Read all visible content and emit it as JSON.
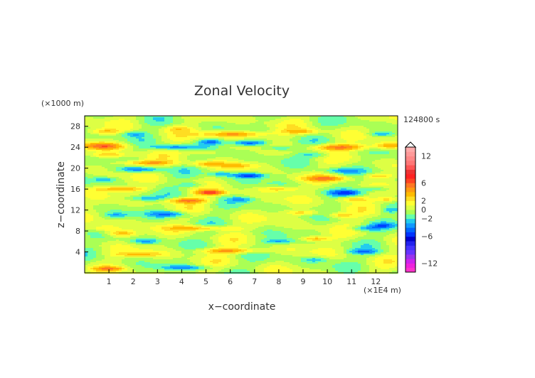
{
  "chart_data": {
    "type": "heatmap",
    "title": "Zonal Velocity",
    "xlabel": "x−coordinate",
    "ylabel": "z−coordinate",
    "x_unit": "(×1E4 m)",
    "y_unit": "(×1000 m)",
    "time_label": "124800 s",
    "xlim": [
      0,
      12.9
    ],
    "ylim": [
      0,
      30
    ],
    "x_ticks": [
      "1",
      "2",
      "3",
      "4",
      "5",
      "6",
      "7",
      "8",
      "9",
      "10",
      "11",
      "12"
    ],
    "y_ticks": [
      "4",
      "8",
      "12",
      "16",
      "20",
      "24",
      "28"
    ],
    "colorbar": {
      "levels": [
        -14,
        -13,
        -12,
        -11,
        -10,
        -9,
        -8,
        -7,
        -6,
        -5,
        -4,
        -3,
        -2,
        -1,
        0,
        1,
        2,
        3,
        4,
        5,
        6,
        7,
        8,
        9,
        10,
        11,
        12,
        13,
        14
      ],
      "colors": [
        "#ff33cc",
        "#ee22dd",
        "#cc22ee",
        "#9933ee",
        "#6633ff",
        "#4433ff",
        "#2222ee",
        "#0000cc",
        "#0033ff",
        "#0066ff",
        "#1199ff",
        "#22ccee",
        "#66ffaa",
        "#aaff55",
        "#ddff44",
        "#ffff33",
        "#ffdd22",
        "#ffbb00",
        "#ff9911",
        "#ff7722",
        "#ff4422",
        "#ff2222",
        "#ee3333",
        "#ff5555",
        "#ff7777",
        "#ff8888",
        "#ff9999",
        "#ffaaaa"
      ],
      "tick_labels": [
        "12",
        "6",
        "2",
        "0",
        "−2",
        "−6",
        "−12"
      ],
      "tick_values": [
        12,
        6,
        2,
        0,
        -2,
        -6,
        -12
      ],
      "range": [
        -14,
        14
      ]
    },
    "features": [
      {
        "x": 0.8,
        "z": 27.0,
        "sx": 0.6,
        "sz": 0.5,
        "a": 3
      },
      {
        "x": 2.0,
        "z": 26.5,
        "sx": 0.5,
        "sz": 0.5,
        "a": -2.5
      },
      {
        "x": 3.8,
        "z": 27.5,
        "sx": 0.6,
        "sz": 0.5,
        "a": 2
      },
      {
        "x": 6.2,
        "z": 26.5,
        "sx": 1.3,
        "sz": 0.6,
        "a": 5
      },
      {
        "x": 9.0,
        "z": 27.0,
        "sx": 0.8,
        "sz": 0.5,
        "a": 3
      },
      {
        "x": 12.2,
        "z": 26.5,
        "sx": 0.5,
        "sz": 0.5,
        "a": -3
      },
      {
        "x": 0.8,
        "z": 24.2,
        "sx": 0.9,
        "sz": 0.7,
        "a": 5
      },
      {
        "x": 3.6,
        "z": 24.0,
        "sx": 0.9,
        "sz": 0.5,
        "a": -4
      },
      {
        "x": 5.2,
        "z": 25.0,
        "sx": 0.5,
        "sz": 0.6,
        "a": -4
      },
      {
        "x": 6.8,
        "z": 24.8,
        "sx": 0.8,
        "sz": 0.5,
        "a": -5
      },
      {
        "x": 8.0,
        "z": 23.8,
        "sx": 0.7,
        "sz": 0.5,
        "a": -3
      },
      {
        "x": 10.5,
        "z": 24.0,
        "sx": 1.2,
        "sz": 0.6,
        "a": 5
      },
      {
        "x": 12.6,
        "z": 24.3,
        "sx": 0.6,
        "sz": 0.6,
        "a": 4
      },
      {
        "x": 1.0,
        "z": 22.5,
        "sx": 0.8,
        "sz": 0.5,
        "a": 3
      },
      {
        "x": 4.8,
        "z": 23.0,
        "sx": 0.7,
        "sz": 0.5,
        "a": 2.5
      },
      {
        "x": 9.5,
        "z": 22.5,
        "sx": 0.7,
        "sz": 0.5,
        "a": -2
      },
      {
        "x": 2.5,
        "z": 21.0,
        "sx": 1.2,
        "sz": 0.5,
        "a": 4
      },
      {
        "x": 2.3,
        "z": 19.7,
        "sx": 0.9,
        "sz": 0.5,
        "a": -4
      },
      {
        "x": 5.0,
        "z": 20.8,
        "sx": 0.7,
        "sz": 0.5,
        "a": 3
      },
      {
        "x": 6.3,
        "z": 20.5,
        "sx": 0.7,
        "sz": 0.5,
        "a": 2.5
      },
      {
        "x": 6.8,
        "z": 18.6,
        "sx": 0.7,
        "sz": 0.5,
        "a": -5
      },
      {
        "x": 5.6,
        "z": 18.9,
        "sx": 0.5,
        "sz": 0.5,
        "a": -3
      },
      {
        "x": 10.5,
        "z": 19.5,
        "sx": 0.8,
        "sz": 0.5,
        "a": -3
      },
      {
        "x": 10.0,
        "z": 18.0,
        "sx": 1.0,
        "sz": 0.5,
        "a": 4
      },
      {
        "x": 12.1,
        "z": 18.5,
        "sx": 0.6,
        "sz": 0.5,
        "a": 3
      },
      {
        "x": 0.8,
        "z": 17.8,
        "sx": 0.5,
        "sz": 0.5,
        "a": -2.5
      },
      {
        "x": 4.5,
        "z": 16.8,
        "sx": 0.5,
        "sz": 0.5,
        "a": -2.5
      },
      {
        "x": 1.5,
        "z": 16.0,
        "sx": 1.1,
        "sz": 0.5,
        "a": 4
      },
      {
        "x": 5.2,
        "z": 15.3,
        "sx": 0.6,
        "sz": 0.5,
        "a": 6
      },
      {
        "x": 8.0,
        "z": 16.0,
        "sx": 0.8,
        "sz": 0.5,
        "a": 3
      },
      {
        "x": 10.8,
        "z": 15.3,
        "sx": 0.7,
        "sz": 0.5,
        "a": -4
      },
      {
        "x": 12.0,
        "z": 16.0,
        "sx": 0.6,
        "sz": 0.5,
        "a": -3
      },
      {
        "x": 2.5,
        "z": 14.2,
        "sx": 0.8,
        "sz": 0.5,
        "a": -3
      },
      {
        "x": 4.2,
        "z": 13.8,
        "sx": 0.9,
        "sz": 0.5,
        "a": 5
      },
      {
        "x": 6.5,
        "z": 14.0,
        "sx": 0.6,
        "sz": 0.5,
        "a": -2.5
      },
      {
        "x": 11.0,
        "z": 14.0,
        "sx": 0.7,
        "sz": 0.5,
        "a": 3
      },
      {
        "x": 12.5,
        "z": 14.0,
        "sx": 0.4,
        "sz": 0.5,
        "a": 3
      },
      {
        "x": 3.5,
        "z": 11.2,
        "sx": 0.8,
        "sz": 0.6,
        "a": -4
      },
      {
        "x": 1.3,
        "z": 11.0,
        "sx": 0.5,
        "sz": 0.5,
        "a": -2.5
      },
      {
        "x": 9.0,
        "z": 11.5,
        "sx": 0.8,
        "sz": 0.5,
        "a": 3
      },
      {
        "x": 10.5,
        "z": 11.0,
        "sx": 0.5,
        "sz": 0.5,
        "a": 3
      },
      {
        "x": 12.6,
        "z": 12.0,
        "sx": 0.4,
        "sz": 0.6,
        "a": -2.5
      },
      {
        "x": 0.8,
        "z": 8.5,
        "sx": 0.6,
        "sz": 0.6,
        "a": 3
      },
      {
        "x": 1.5,
        "z": 7.5,
        "sx": 0.6,
        "sz": 0.6,
        "a": 4
      },
      {
        "x": 4.8,
        "z": 8.5,
        "sx": 1.3,
        "sz": 0.5,
        "a": 4
      },
      {
        "x": 11.5,
        "z": 8.5,
        "sx": 0.6,
        "sz": 0.5,
        "a": -3
      },
      {
        "x": 12.3,
        "z": 9.0,
        "sx": 0.5,
        "sz": 0.5,
        "a": -3
      },
      {
        "x": 2.5,
        "z": 6.0,
        "sx": 0.6,
        "sz": 0.5,
        "a": -3
      },
      {
        "x": 8.0,
        "z": 6.0,
        "sx": 0.7,
        "sz": 0.5,
        "a": -3
      },
      {
        "x": 9.5,
        "z": 6.5,
        "sx": 0.6,
        "sz": 0.5,
        "a": 4
      },
      {
        "x": 6.0,
        "z": 4.2,
        "sx": 1.4,
        "sz": 0.5,
        "a": 4
      },
      {
        "x": 2.2,
        "z": 3.5,
        "sx": 1.0,
        "sz": 0.5,
        "a": 3
      },
      {
        "x": 11.5,
        "z": 4.0,
        "sx": 0.7,
        "sz": 0.5,
        "a": -3
      },
      {
        "x": 9.5,
        "z": 2.5,
        "sx": 0.5,
        "sz": 0.5,
        "a": -2.5
      },
      {
        "x": 1.0,
        "z": 0.8,
        "sx": 0.6,
        "sz": 0.4,
        "a": 4
      },
      {
        "x": 4.2,
        "z": 1.0,
        "sx": 1.0,
        "sz": 0.4,
        "a": -3
      }
    ],
    "wave_amplitude": 1.6
  }
}
